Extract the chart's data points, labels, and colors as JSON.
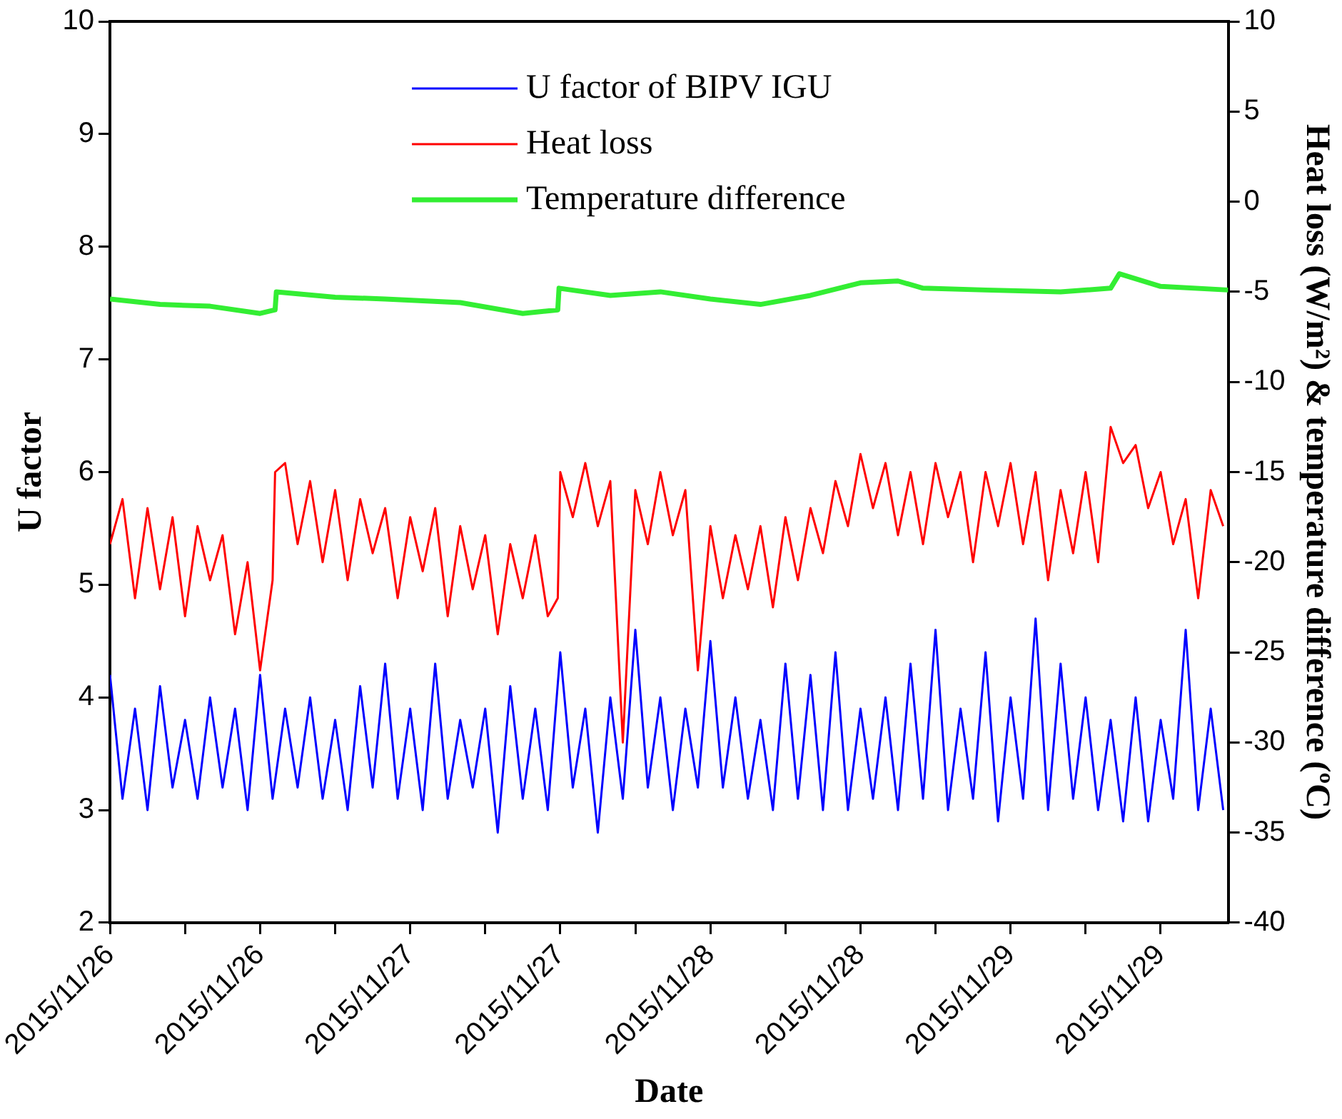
{
  "chart_data": {
    "type": "line",
    "xlabel": "Date",
    "ylabel": "U factor",
    "y2label": "Heat loss (W/m²) & temperature difference (ºC)",
    "xlim": [
      "2015-11-26T00:00",
      "2015-11-29T17:24"
    ],
    "xticks": [
      {
        "value": "2015-11-26T00:00",
        "label": "2015/11/26"
      },
      {
        "value": "2015-11-26T06:00",
        "label": null
      },
      {
        "value": "2015-11-26T12:00",
        "label": "2015/11/26"
      },
      {
        "value": "2015-11-26T18:00",
        "label": null
      },
      {
        "value": "2015-11-27T00:00",
        "label": "2015/11/27"
      },
      {
        "value": "2015-11-27T06:00",
        "label": null
      },
      {
        "value": "2015-11-27T12:00",
        "label": "2015/11/27"
      },
      {
        "value": "2015-11-27T18:00",
        "label": null
      },
      {
        "value": "2015-11-28T00:00",
        "label": "2015/11/28"
      },
      {
        "value": "2015-11-28T06:00",
        "label": null
      },
      {
        "value": "2015-11-28T12:00",
        "label": "2015/11/28"
      },
      {
        "value": "2015-11-28T18:00",
        "label": null
      },
      {
        "value": "2015-11-29T00:00",
        "label": "2015/11/29"
      },
      {
        "value": "2015-11-29T06:00",
        "label": null
      },
      {
        "value": "2015-11-29T12:00",
        "label": "2015/11/29"
      }
    ],
    "ylim": [
      2,
      10
    ],
    "yticks": [
      2,
      3,
      4,
      5,
      6,
      7,
      8,
      9,
      10
    ],
    "y2lim": [
      -40,
      10
    ],
    "y2ticks": [
      -40,
      -35,
      -30,
      -25,
      -20,
      -15,
      -10,
      -5,
      0,
      5,
      10
    ],
    "legend": "top",
    "grid": false,
    "marker": "none",
    "line_style": "solid",
    "series": [
      {
        "name": "U factor of BIPV IGU",
        "color": "#0000ff",
        "x": [
          "2015-11-26T00:00",
          "2015-11-26T01:00",
          "2015-11-26T02:00",
          "2015-11-26T03:00",
          "2015-11-26T04:00",
          "2015-11-26T05:00",
          "2015-11-26T06:00",
          "2015-11-26T07:00",
          "2015-11-26T08:00",
          "2015-11-26T09:00",
          "2015-11-26T10:00",
          "2015-11-26T11:00",
          "2015-11-26T12:00",
          "2015-11-26T13:00",
          "2015-11-26T14:00",
          "2015-11-26T15:00",
          "2015-11-26T16:00",
          "2015-11-26T17:00",
          "2015-11-26T18:00",
          "2015-11-26T19:00",
          "2015-11-26T20:00",
          "2015-11-26T21:00",
          "2015-11-26T22:00",
          "2015-11-26T23:00",
          "2015-11-27T00:00",
          "2015-11-27T01:00",
          "2015-11-27T02:00",
          "2015-11-27T03:00",
          "2015-11-27T04:00",
          "2015-11-27T05:00",
          "2015-11-27T06:00",
          "2015-11-27T07:00",
          "2015-11-27T08:00",
          "2015-11-27T09:00",
          "2015-11-27T10:00",
          "2015-11-27T11:00",
          "2015-11-27T12:00",
          "2015-11-27T13:00",
          "2015-11-27T14:00",
          "2015-11-27T15:00",
          "2015-11-27T16:00",
          "2015-11-27T17:00",
          "2015-11-27T18:00",
          "2015-11-27T19:00",
          "2015-11-27T20:00",
          "2015-11-27T21:00",
          "2015-11-27T22:00",
          "2015-11-27T23:00",
          "2015-11-28T00:00",
          "2015-11-28T01:00",
          "2015-11-28T02:00",
          "2015-11-28T03:00",
          "2015-11-28T04:00",
          "2015-11-28T05:00",
          "2015-11-28T06:00",
          "2015-11-28T07:00",
          "2015-11-28T08:00",
          "2015-11-28T09:00",
          "2015-11-28T10:00",
          "2015-11-28T11:00",
          "2015-11-28T12:00",
          "2015-11-28T13:00",
          "2015-11-28T14:00",
          "2015-11-28T15:00",
          "2015-11-28T16:00",
          "2015-11-28T17:00",
          "2015-11-28T18:00",
          "2015-11-28T19:00",
          "2015-11-28T20:00",
          "2015-11-28T21:00",
          "2015-11-28T22:00",
          "2015-11-28T23:00",
          "2015-11-29T00:00",
          "2015-11-29T01:00",
          "2015-11-29T02:00",
          "2015-11-29T03:00",
          "2015-11-29T04:00",
          "2015-11-29T05:00",
          "2015-11-29T06:00",
          "2015-11-29T07:00",
          "2015-11-29T08:00",
          "2015-11-29T09:00",
          "2015-11-29T10:00",
          "2015-11-29T11:00",
          "2015-11-29T12:00",
          "2015-11-29T13:00",
          "2015-11-29T14:00",
          "2015-11-29T15:00",
          "2015-11-29T16:00",
          "2015-11-29T17:00"
        ],
        "values": [
          4.2,
          3.1,
          3.9,
          3.0,
          4.1,
          3.2,
          3.8,
          3.1,
          4.0,
          3.2,
          3.9,
          3.0,
          4.2,
          3.1,
          3.9,
          3.2,
          4.0,
          3.1,
          3.8,
          3.0,
          4.1,
          3.2,
          4.3,
          3.1,
          3.9,
          3.0,
          4.3,
          3.1,
          3.8,
          3.2,
          3.9,
          2.8,
          4.1,
          3.1,
          3.9,
          3.0,
          4.4,
          3.2,
          3.9,
          2.8,
          4.0,
          3.1,
          4.6,
          3.2,
          4.0,
          3.0,
          3.9,
          3.2,
          4.5,
          3.2,
          4.0,
          3.1,
          3.8,
          3.0,
          4.3,
          3.1,
          4.2,
          3.0,
          4.4,
          3.0,
          3.9,
          3.1,
          4.0,
          3.0,
          4.3,
          3.1,
          4.6,
          3.0,
          3.9,
          3.1,
          4.4,
          2.9,
          4.0,
          3.1,
          4.7,
          3.0,
          4.3,
          3.1,
          4.0,
          3.0,
          3.8,
          2.9,
          4.0,
          2.9,
          3.8,
          3.1,
          4.6,
          3.0,
          3.9,
          3.0
        ]
      },
      {
        "name": "Heat loss",
        "color": "#ff0000",
        "axis": "y2",
        "x": [
          "2015-11-26T00:00",
          "2015-11-26T01:00",
          "2015-11-26T02:00",
          "2015-11-26T03:00",
          "2015-11-26T04:00",
          "2015-11-26T05:00",
          "2015-11-26T06:00",
          "2015-11-26T07:00",
          "2015-11-26T08:00",
          "2015-11-26T09:00",
          "2015-11-26T10:00",
          "2015-11-26T11:00",
          "2015-11-26T12:00",
          "2015-11-26T13:00",
          "2015-11-26T13:12",
          "2015-11-26T14:00",
          "2015-11-26T15:00",
          "2015-11-26T16:00",
          "2015-11-26T17:00",
          "2015-11-26T18:00",
          "2015-11-26T19:00",
          "2015-11-26T20:00",
          "2015-11-26T21:00",
          "2015-11-26T22:00",
          "2015-11-26T23:00",
          "2015-11-27T00:00",
          "2015-11-27T01:00",
          "2015-11-27T02:00",
          "2015-11-27T03:00",
          "2015-11-27T04:00",
          "2015-11-27T05:00",
          "2015-11-27T06:00",
          "2015-11-27T07:00",
          "2015-11-27T08:00",
          "2015-11-27T09:00",
          "2015-11-27T10:00",
          "2015-11-27T11:00",
          "2015-11-27T11:48",
          "2015-11-27T12:00",
          "2015-11-27T13:00",
          "2015-11-27T14:00",
          "2015-11-27T15:00",
          "2015-11-27T16:00",
          "2015-11-27T17:00",
          "2015-11-27T18:00",
          "2015-11-27T19:00",
          "2015-11-27T20:00",
          "2015-11-27T21:00",
          "2015-11-27T22:00",
          "2015-11-27T23:00",
          "2015-11-28T00:00",
          "2015-11-28T01:00",
          "2015-11-28T02:00",
          "2015-11-28T03:00",
          "2015-11-28T04:00",
          "2015-11-28T05:00",
          "2015-11-28T06:00",
          "2015-11-28T07:00",
          "2015-11-28T08:00",
          "2015-11-28T09:00",
          "2015-11-28T10:00",
          "2015-11-28T11:00",
          "2015-11-28T12:00",
          "2015-11-28T13:00",
          "2015-11-28T14:00",
          "2015-11-28T15:00",
          "2015-11-28T16:00",
          "2015-11-28T17:00",
          "2015-11-28T18:00",
          "2015-11-28T19:00",
          "2015-11-28T20:00",
          "2015-11-28T21:00",
          "2015-11-28T22:00",
          "2015-11-28T23:00",
          "2015-11-29T00:00",
          "2015-11-29T01:00",
          "2015-11-29T02:00",
          "2015-11-29T03:00",
          "2015-11-29T04:00",
          "2015-11-29T05:00",
          "2015-11-29T06:00",
          "2015-11-29T07:00",
          "2015-11-29T08:00",
          "2015-11-29T09:00",
          "2015-11-29T10:00",
          "2015-11-29T11:00",
          "2015-11-29T12:00",
          "2015-11-29T13:00",
          "2015-11-29T14:00",
          "2015-11-29T15:00",
          "2015-11-29T16:00",
          "2015-11-29T17:00"
        ],
        "values": [
          -19,
          -16.5,
          -22,
          -17,
          -21.5,
          -17.5,
          -23,
          -18,
          -21,
          -18.5,
          -24,
          -20,
          -26,
          -21,
          -15,
          -14.5,
          -19,
          -15.5,
          -20,
          -16,
          -21,
          -16.5,
          -19.5,
          -17,
          -22,
          -17.5,
          -20.5,
          -17,
          -23,
          -18,
          -21.5,
          -18.5,
          -24,
          -19,
          -22,
          -18.5,
          -23,
          -22,
          -15,
          -17.5,
          -14.5,
          -18,
          -15.5,
          -30,
          -16,
          -19,
          -15,
          -18.5,
          -16,
          -26,
          -18,
          -22,
          -18.5,
          -21.5,
          -18,
          -22.5,
          -17.5,
          -21,
          -17,
          -19.5,
          -15.5,
          -18,
          -14,
          -17,
          -14.5,
          -18.5,
          -15,
          -19,
          -14.5,
          -17.5,
          -15,
          -20,
          -15,
          -18,
          -14.5,
          -19,
          -15,
          -21,
          -16,
          -19.5,
          -15,
          -20,
          -12.5,
          -14.5,
          -13.5,
          -17,
          -15,
          -19,
          -16.5,
          -22,
          -16,
          -18
        ]
      },
      {
        "name": "Temperature difference",
        "color": "#33ee33",
        "axis": "y2",
        "x": [
          "2015-11-26T00:00",
          "2015-11-26T04:00",
          "2015-11-26T08:00",
          "2015-11-26T12:00",
          "2015-11-26T13:12",
          "2015-11-26T13:18",
          "2015-11-26T18:00",
          "2015-11-26T22:00",
          "2015-11-27T04:00",
          "2015-11-27T09:00",
          "2015-11-27T11:48",
          "2015-11-27T11:54",
          "2015-11-27T16:00",
          "2015-11-27T20:00",
          "2015-11-28T00:00",
          "2015-11-28T04:00",
          "2015-11-28T08:00",
          "2015-11-28T12:00",
          "2015-11-28T15:00",
          "2015-11-28T17:00",
          "2015-11-28T22:00",
          "2015-11-29T04:00",
          "2015-11-29T08:00",
          "2015-11-29T08:42",
          "2015-11-29T12:00",
          "2015-11-29T17:24"
        ],
        "values": [
          -5.4,
          -5.7,
          -5.8,
          -6.2,
          -6.0,
          -5.0,
          -5.3,
          -5.4,
          -5.6,
          -6.2,
          -6.0,
          -4.8,
          -5.2,
          -5.0,
          -5.4,
          -5.7,
          -5.2,
          -4.5,
          -4.4,
          -4.8,
          -4.9,
          -5.0,
          -4.8,
          -4.0,
          -4.7,
          -4.9
        ]
      }
    ]
  }
}
